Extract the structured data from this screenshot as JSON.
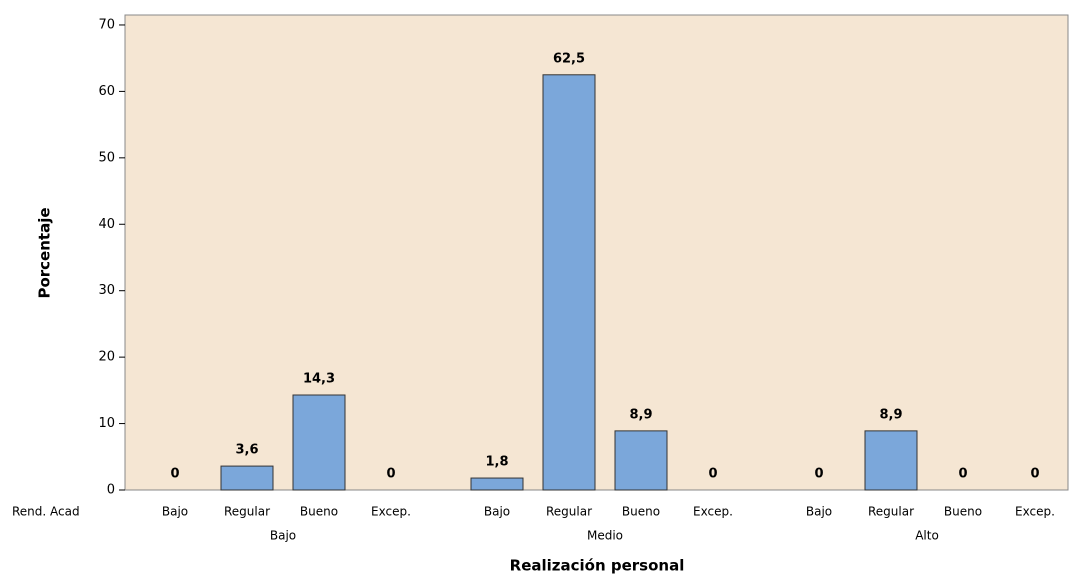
{
  "chart_data": {
    "type": "grouped_bar",
    "x_label": "Realización personal",
    "y_label": "Porcentaje",
    "row_label": "Rend. Acad",
    "color": "#7ba7da",
    "background": "#f5e6d3",
    "ylim": [
      0,
      71.5
    ],
    "yticks": [
      0,
      10,
      20,
      30,
      40,
      50,
      60,
      70
    ],
    "groups": [
      {
        "name": "Bajo",
        "categories": [
          "Bajo",
          "Regular",
          "Bueno",
          "Excep."
        ],
        "values": [
          0,
          3.6,
          14.3,
          0
        ],
        "value_labels": [
          "0",
          "3,6",
          "14,3",
          "0"
        ]
      },
      {
        "name": "Medio",
        "categories": [
          "Bajo",
          "Regular",
          "Bueno",
          "Excep."
        ],
        "values": [
          1.8,
          62.5,
          8.9,
          0
        ],
        "value_labels": [
          "1,8",
          "62,5",
          "8,9",
          "0"
        ]
      },
      {
        "name": "Alto",
        "categories": [
          "Bajo",
          "Regular",
          "Bueno",
          "Excep."
        ],
        "values": [
          0,
          8.9,
          0,
          0
        ],
        "value_labels": [
          "0",
          "8,9",
          "0",
          "0"
        ]
      }
    ]
  }
}
